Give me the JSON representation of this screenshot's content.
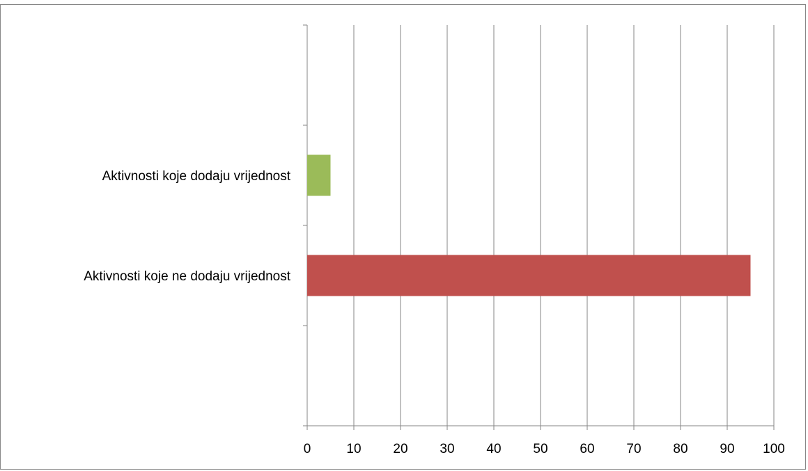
{
  "chart_data": {
    "type": "bar",
    "orientation": "horizontal",
    "categories": [
      "Aktivnosti koje ne dodaju vrijednost",
      "Aktivnosti koje dodaju vrijednost"
    ],
    "series": [
      {
        "values": [
          95,
          5
        ],
        "colors": [
          "#C0504D",
          "#9BBB59"
        ]
      }
    ],
    "title": "",
    "xlabel": "",
    "ylabel": "",
    "xlim": [
      0,
      100
    ],
    "x_ticks": [
      "0",
      "10",
      "20",
      "30",
      "40",
      "50",
      "60",
      "70",
      "80",
      "90",
      "100"
    ],
    "category_slots": 4,
    "category_slot_indices": [
      1,
      2
    ],
    "grid": "vertical",
    "legend": "none",
    "border_color": "#868686",
    "grid_color": "#868686"
  }
}
